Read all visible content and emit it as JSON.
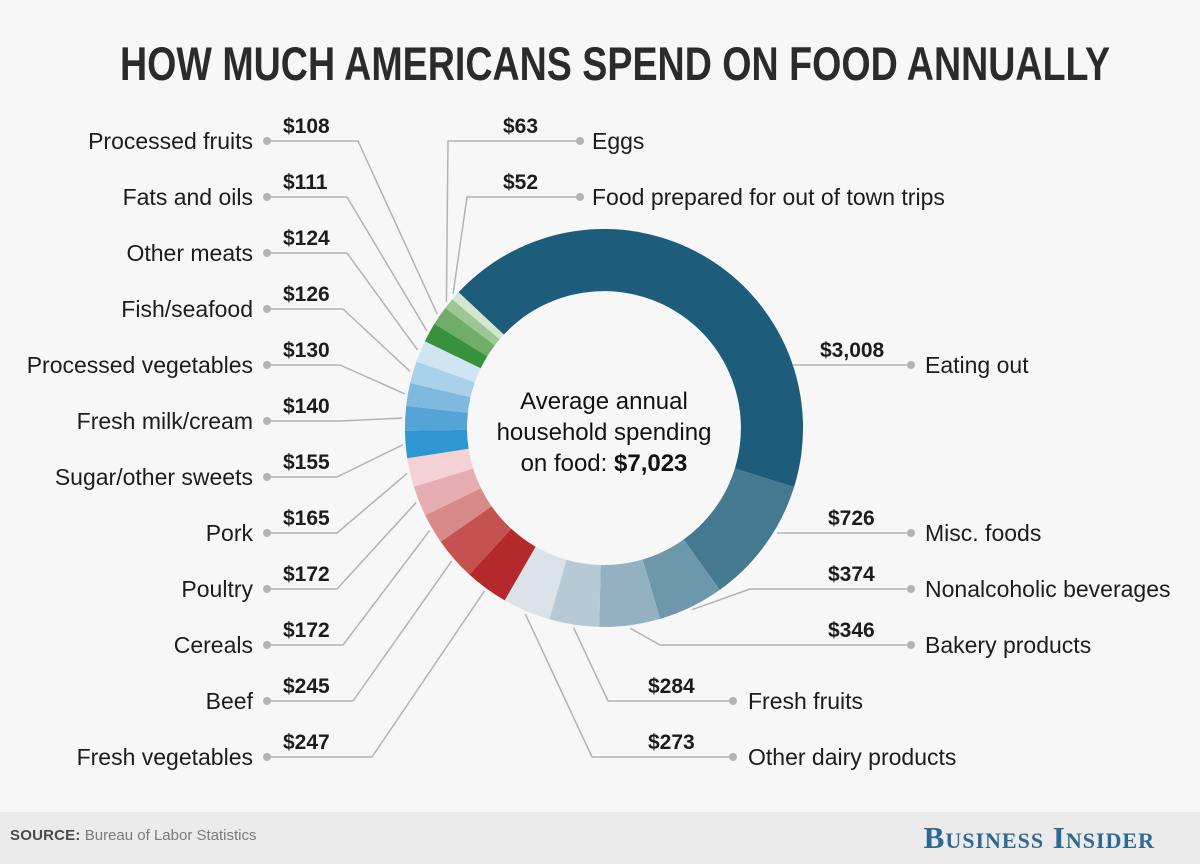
{
  "title": "HOW MUCH AMERICANS SPEND ON FOOD ANNUALLY",
  "center": {
    "prefix": "Average annual household spending on food:",
    "amount": "$7,023"
  },
  "footer": {
    "source_label": "SOURCE:",
    "source_text": "Bureau of Labor Statistics",
    "brand": "Business Insider"
  },
  "chart_data": {
    "type": "pie",
    "subtype": "donut",
    "title": "How much Americans spend on food annually",
    "total": 7023,
    "units": "USD per household per year",
    "start_angle_deg": -47,
    "inner_radius_ratio": 0.69,
    "legend_position": "callout-labels",
    "segments": [
      {
        "label": "Eating out",
        "value": 3008,
        "value_label": "$3,008",
        "color": "#1e5c7c"
      },
      {
        "label": "Misc. foods",
        "value": 726,
        "value_label": "$726",
        "color": "#45798f"
      },
      {
        "label": "Nonalcoholic beverages",
        "value": 374,
        "value_label": "$374",
        "color": "#6d97ab"
      },
      {
        "label": "Bakery products",
        "value": 346,
        "value_label": "$346",
        "color": "#93b1c0"
      },
      {
        "label": "Fresh fruits",
        "value": 284,
        "value_label": "$284",
        "color": "#b5cad4"
      },
      {
        "label": "Other dairy products",
        "value": 273,
        "value_label": "$273",
        "color": "#d9e3e8"
      },
      {
        "label": "Fresh vegetables",
        "value": 247,
        "value_label": "$247",
        "color": "#b5282b"
      },
      {
        "label": "Beef",
        "value": 245,
        "value_label": "$245",
        "color": "#c55150"
      },
      {
        "label": "Cereals",
        "value": 172,
        "value_label": "$172",
        "color": "#d8898a"
      },
      {
        "label": "Poultry",
        "value": 172,
        "value_label": "$172",
        "color": "#e7aeb1"
      },
      {
        "label": "Pork",
        "value": 165,
        "value_label": "$165",
        "color": "#f3d1d4"
      },
      {
        "label": "Sugar/other sweets",
        "value": 155,
        "value_label": "$155",
        "color": "#2e96d1"
      },
      {
        "label": "Fresh milk/cream",
        "value": 140,
        "value_label": "$140",
        "color": "#55a4d7"
      },
      {
        "label": "Processed vegetables",
        "value": 130,
        "value_label": "$130",
        "color": "#7fb9de"
      },
      {
        "label": "Fish/seafood",
        "value": 126,
        "value_label": "$126",
        "color": "#a9d1ea"
      },
      {
        "label": "Other meats",
        "value": 124,
        "value_label": "$124",
        "color": "#cfe5f2"
      },
      {
        "label": "Fats and oils",
        "value": 111,
        "value_label": "$111",
        "color": "#37913d"
      },
      {
        "label": "Processed fruits",
        "value": 108,
        "value_label": "$108",
        "color": "#70ad68"
      },
      {
        "label": "Eggs",
        "value": 63,
        "value_label": "$63",
        "color": "#9cc795"
      },
      {
        "label": "Food prepared for out of town trips",
        "value": 52,
        "value_label": "$52",
        "color": "#d3e6cf"
      }
    ]
  }
}
